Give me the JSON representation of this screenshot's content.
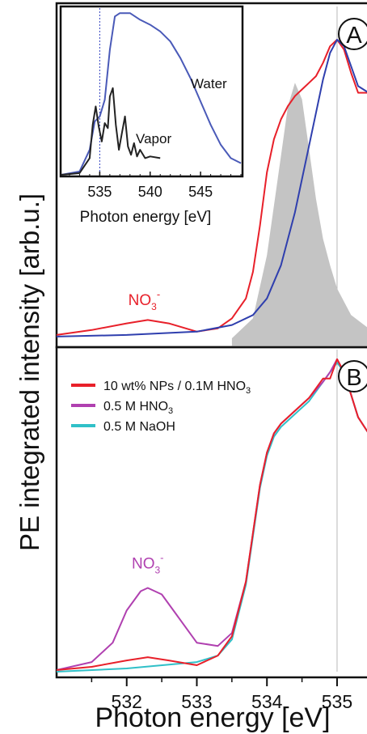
{
  "colors": {
    "frame": "#111111",
    "red": "#e8202a",
    "blue": "#2f3fae",
    "gray_fill": "#c4c4c4",
    "magenta": "#b040b0",
    "cyan": "#30c0c8",
    "inset_water": "#4a5ab8",
    "inset_vapor": "#222222",
    "guide": "#b8b8b8",
    "inset_guide": "#3040c0"
  },
  "ylabel": "PE integrated intensity [arb.u.]",
  "xlabel": "Photon energy [eV]",
  "chart_data": [
    {
      "id": "A",
      "type": "line",
      "panel_label": "A",
      "xlim": [
        531.0,
        535.45
      ],
      "x_ticks": [
        532,
        533,
        534,
        535
      ],
      "guide_x": 535.0,
      "series": [
        {
          "name": "",
          "color_key": "red",
          "x": [
            531.0,
            531.5,
            532.0,
            532.3,
            532.6,
            533.0,
            533.3,
            533.5,
            533.7,
            533.8,
            533.9,
            534.0,
            534.1,
            534.2,
            534.3,
            534.4,
            534.5,
            534.6,
            534.7,
            534.8,
            534.9,
            535.0,
            535.1,
            535.2,
            535.3,
            535.45
          ],
          "y": [
            0.01,
            0.025,
            0.045,
            0.055,
            0.045,
            0.02,
            0.03,
            0.06,
            0.12,
            0.2,
            0.34,
            0.5,
            0.6,
            0.66,
            0.7,
            0.73,
            0.75,
            0.77,
            0.79,
            0.83,
            0.88,
            0.9,
            0.87,
            0.8,
            0.74,
            0.74
          ]
        },
        {
          "name": "",
          "color_key": "blue",
          "x": [
            531.0,
            532.0,
            533.0,
            533.5,
            533.8,
            534.0,
            534.2,
            534.4,
            534.6,
            534.8,
            534.9,
            535.0,
            535.1,
            535.2,
            535.3,
            535.45
          ],
          "y": [
            0.005,
            0.01,
            0.02,
            0.04,
            0.07,
            0.12,
            0.22,
            0.38,
            0.58,
            0.78,
            0.86,
            0.9,
            0.88,
            0.82,
            0.76,
            0.74
          ]
        },
        {
          "name": "",
          "fill": true,
          "color_key": "gray_fill",
          "x": [
            533.5,
            533.8,
            534.0,
            534.2,
            534.3,
            534.4,
            534.5,
            534.6,
            534.7,
            534.8,
            534.9,
            535.0,
            535.2,
            535.45
          ],
          "y": [
            0.0,
            0.06,
            0.25,
            0.55,
            0.7,
            0.77,
            0.72,
            0.57,
            0.42,
            0.3,
            0.22,
            0.15,
            0.07,
            0.03
          ]
        }
      ],
      "annotations": [
        {
          "text": "NO",
          "sub": "3",
          "sup": "-",
          "x": 532.25,
          "y": 0.1,
          "color_key": "red"
        }
      ],
      "inset": {
        "type": "line",
        "xlim": [
          531.2,
          549.0
        ],
        "x_ticks": [
          535,
          540,
          545
        ],
        "xlabel": "Photon energy [eV]",
        "guide_x": 535.0,
        "series": [
          {
            "name": "Water",
            "color_key": "inset_water",
            "x": [
              531.2,
              533.0,
              534.0,
              534.5,
              535.0,
              535.5,
              536.0,
              536.5,
              537.0,
              538.0,
              539.0,
              540.0,
              541.0,
              542.0,
              543.0,
              544.0,
              545.0,
              546.0,
              547.0,
              548.0,
              549.0
            ],
            "y": [
              0.0,
              0.02,
              0.15,
              0.32,
              0.35,
              0.45,
              0.75,
              0.95,
              0.97,
              0.97,
              0.93,
              0.9,
              0.86,
              0.8,
              0.7,
              0.58,
              0.44,
              0.3,
              0.18,
              0.1,
              0.07
            ]
          },
          {
            "name": "Vapor",
            "color_key": "inset_vapor",
            "x": [
              531.2,
              533.0,
              534.0,
              534.3,
              534.6,
              534.9,
              535.2,
              535.5,
              535.8,
              536.0,
              536.3,
              536.6,
              536.9,
              537.2,
              537.5,
              537.8,
              538.1,
              538.4,
              538.7,
              539.0,
              539.5,
              540.0,
              541.0
            ],
            "y": [
              0.0,
              0.01,
              0.1,
              0.3,
              0.41,
              0.29,
              0.2,
              0.31,
              0.28,
              0.47,
              0.52,
              0.3,
              0.15,
              0.25,
              0.35,
              0.17,
              0.12,
              0.19,
              0.11,
              0.15,
              0.1,
              0.11,
              0.1
            ]
          }
        ]
      }
    },
    {
      "id": "B",
      "type": "line",
      "panel_label": "B",
      "xlim": [
        531.0,
        535.45
      ],
      "x_ticks": [
        532,
        533,
        534,
        535
      ],
      "guide_x": 535.0,
      "series": [
        {
          "name": "10 wt% NPs / 0.1M HNO",
          "name_sub": "3",
          "color_key": "red",
          "x": [
            531.0,
            531.5,
            532.0,
            532.3,
            532.6,
            533.0,
            533.3,
            533.5,
            533.7,
            533.8,
            533.9,
            534.0,
            534.1,
            534.2,
            534.4,
            534.6,
            534.8,
            534.9,
            535.0,
            535.1,
            535.2,
            535.3,
            535.45
          ],
          "y": [
            0.005,
            0.015,
            0.035,
            0.045,
            0.035,
            0.02,
            0.05,
            0.11,
            0.28,
            0.43,
            0.58,
            0.68,
            0.74,
            0.77,
            0.81,
            0.85,
            0.91,
            0.91,
            0.97,
            0.93,
            0.86,
            0.79,
            0.74
          ]
        },
        {
          "name": "0.5 M HNO",
          "name_sub": "3",
          "color_key": "magenta",
          "x": [
            531.0,
            531.5,
            531.8,
            532.0,
            532.2,
            532.3,
            532.5,
            532.7,
            533.0,
            533.3,
            533.5,
            533.7,
            533.8,
            533.9,
            534.0,
            534.1,
            534.2,
            534.4,
            534.6,
            534.8,
            534.9,
            535.0,
            535.1,
            535.2,
            535.3,
            535.45
          ],
          "y": [
            0.005,
            0.03,
            0.09,
            0.19,
            0.25,
            0.26,
            0.24,
            0.18,
            0.09,
            0.08,
            0.12,
            0.28,
            0.43,
            0.58,
            0.68,
            0.74,
            0.77,
            0.81,
            0.85,
            0.9,
            0.93,
            0.97,
            0.93,
            0.86,
            0.79,
            0.74
          ]
        },
        {
          "name": "0.5 M NaOH",
          "color_key": "cyan",
          "x": [
            531.0,
            532.0,
            533.0,
            533.3,
            533.5,
            533.7,
            533.8,
            533.9,
            534.0,
            534.1,
            534.2,
            534.4,
            534.6,
            534.8,
            534.9,
            535.0,
            535.1,
            535.2,
            535.3,
            535.45
          ],
          "y": [
            0.0,
            0.01,
            0.03,
            0.05,
            0.1,
            0.27,
            0.42,
            0.57,
            0.67,
            0.73,
            0.76,
            0.8,
            0.84,
            0.9,
            0.93,
            0.96,
            0.93,
            0.86,
            0.79,
            0.74
          ]
        }
      ],
      "annotations": [
        {
          "text": "NO",
          "sub": "3",
          "sup": "-",
          "x": 532.3,
          "y": 0.32,
          "color_key": "magenta"
        }
      ]
    }
  ]
}
